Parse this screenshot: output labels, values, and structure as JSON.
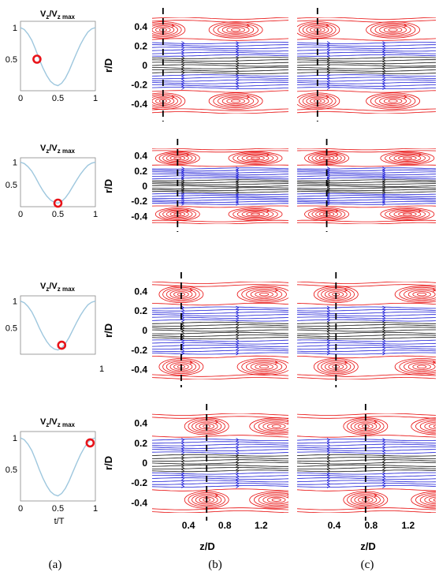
{
  "figure": {
    "panel_labels": [
      "(a)",
      "(b)",
      "(c)"
    ],
    "waveform_title_main": "V",
    "waveform_title_sub1": "z",
    "waveform_title_mid": "/V",
    "waveform_title_sub2": "z max",
    "waveform_xlabel": "t/T",
    "stream_ylabel": "r/D",
    "stream_xlabel": "z/D",
    "stray_tick": "1"
  },
  "chart_data": [
    {
      "type": "line",
      "id": "waveform",
      "description_rows": 4,
      "x": [
        0,
        0.05,
        0.1,
        0.15,
        0.2,
        0.25,
        0.3,
        0.35,
        0.4,
        0.45,
        0.5,
        0.55,
        0.6,
        0.65,
        0.7,
        0.75,
        0.8,
        0.85,
        0.9,
        0.95,
        1.0
      ],
      "y": [
        1.0,
        0.97,
        0.9,
        0.8,
        0.66,
        0.5,
        0.36,
        0.24,
        0.15,
        0.1,
        0.08,
        0.12,
        0.2,
        0.32,
        0.46,
        0.6,
        0.73,
        0.84,
        0.93,
        0.98,
        1.0
      ],
      "xlim": [
        0,
        1
      ],
      "ylim": [
        0,
        1.1
      ],
      "xticks": [
        "0",
        "0.5",
        "1"
      ],
      "yticks": [
        "0.5",
        "1"
      ],
      "markers": [
        {
          "t": 0.22,
          "v": 0.5
        },
        {
          "t": 0.5,
          "v": 0.08
        },
        {
          "t": 0.55,
          "v": 0.17
        },
        {
          "t": 0.93,
          "v": 0.92
        }
      ],
      "line_color": "#9ec7de",
      "marker_color": "#e8141a"
    },
    {
      "type": "streamlines",
      "id": "streamline-panels",
      "ylim": [
        -0.5,
        0.5
      ],
      "xlim": [
        0,
        1.5
      ],
      "yticks": [
        "0.4",
        "0.2",
        "0",
        "-0.2",
        "-0.4"
      ],
      "xticks": [
        "0.4",
        "0.8",
        "1.2"
      ],
      "core_color": "#1c1cd6",
      "vortex_color": "#e80a0a",
      "dashed_line_z": {
        "b": [
          0.12,
          0.28,
          0.32,
          0.6
        ],
        "c": [
          0.22,
          0.32,
          0.42,
          0.74
        ]
      }
    }
  ]
}
